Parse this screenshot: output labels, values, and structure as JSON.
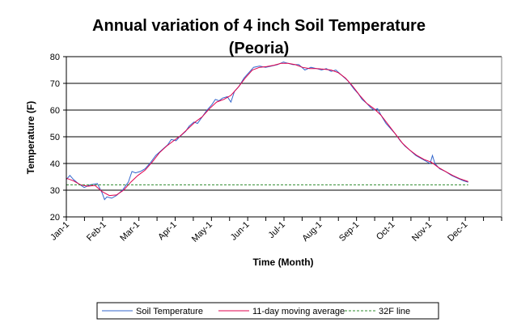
{
  "chart_data": {
    "type": "line",
    "title_line1": "Annual variation of 4 inch Soil Temperature",
    "title_line2": "(Peoria)",
    "xlabel": "Time (Month)",
    "ylabel": "Temperature (F)",
    "ylim": [
      20,
      80
    ],
    "yticks": [
      "20",
      "30",
      "40",
      "50",
      "60",
      "70",
      "80"
    ],
    "xlim": [
      0,
      365
    ],
    "categories": [
      "Jan-1",
      "Feb-1",
      "Mar-1",
      "Apr-1",
      "May-1",
      "Jun-1",
      "Jul-1",
      "Aug-1",
      "Sep-1",
      "Oct-1",
      "Nov-1",
      "Dec-1"
    ],
    "category_days": [
      0,
      31,
      59,
      90,
      120,
      151,
      181,
      212,
      243,
      273,
      304,
      334
    ],
    "grid": true,
    "legend_position": "bottom",
    "series": [
      {
        "name": "Soil Temperature",
        "color": "#3366cc",
        "style": "solid",
        "points": [
          [
            0,
            34
          ],
          [
            3,
            35.5
          ],
          [
            6,
            34
          ],
          [
            10,
            32.5
          ],
          [
            15,
            31
          ],
          [
            20,
            32
          ],
          [
            26,
            32.5
          ],
          [
            30,
            29
          ],
          [
            32,
            26.5
          ],
          [
            34,
            27.5
          ],
          [
            38,
            27
          ],
          [
            42,
            28
          ],
          [
            47,
            30
          ],
          [
            52,
            33
          ],
          [
            55,
            37
          ],
          [
            58,
            36.5
          ],
          [
            62,
            37
          ],
          [
            66,
            38
          ],
          [
            70,
            40
          ],
          [
            75,
            43
          ],
          [
            80,
            45
          ],
          [
            85,
            47
          ],
          [
            88,
            49
          ],
          [
            92,
            48.5
          ],
          [
            95,
            50
          ],
          [
            100,
            52
          ],
          [
            103,
            54
          ],
          [
            107,
            55.5
          ],
          [
            110,
            55
          ],
          [
            114,
            57.5
          ],
          [
            118,
            60
          ],
          [
            122,
            62
          ],
          [
            125,
            64
          ],
          [
            128,
            63.5
          ],
          [
            131,
            64.5
          ],
          [
            135,
            65
          ],
          [
            138,
            63
          ],
          [
            141,
            67
          ],
          [
            145,
            69
          ],
          [
            149,
            72
          ],
          [
            153,
            74
          ],
          [
            157,
            76
          ],
          [
            162,
            76.5
          ],
          [
            167,
            76
          ],
          [
            172,
            76.5
          ],
          [
            177,
            77
          ],
          [
            182,
            78
          ],
          [
            186,
            77.5
          ],
          [
            190,
            77
          ],
          [
            195,
            77
          ],
          [
            200,
            75
          ],
          [
            205,
            76
          ],
          [
            210,
            75.5
          ],
          [
            214,
            75
          ],
          [
            218,
            75.5
          ],
          [
            222,
            74.5
          ],
          [
            226,
            75
          ],
          [
            231,
            73
          ],
          [
            236,
            71
          ],
          [
            241,
            68
          ],
          [
            245,
            66
          ],
          [
            248,
            64
          ],
          [
            252,
            62.5
          ],
          [
            255,
            61
          ],
          [
            258,
            60
          ],
          [
            261,
            60.5
          ],
          [
            264,
            58
          ],
          [
            268,
            55
          ],
          [
            272,
            53
          ],
          [
            276,
            51
          ],
          [
            280,
            48.5
          ],
          [
            284,
            46.5
          ],
          [
            288,
            45
          ],
          [
            293,
            43
          ],
          [
            297,
            42
          ],
          [
            301,
            41
          ],
          [
            305,
            40
          ],
          [
            307,
            43
          ],
          [
            309,
            40
          ],
          [
            313,
            38
          ],
          [
            318,
            37
          ],
          [
            323,
            35.5
          ],
          [
            328,
            34.5
          ],
          [
            333,
            33.5
          ],
          [
            337,
            33
          ]
        ]
      },
      {
        "name": "11-day moving average",
        "color": "#e0004c",
        "style": "solid",
        "points": [
          [
            0,
            34.5
          ],
          [
            6,
            33.5
          ],
          [
            12,
            32
          ],
          [
            18,
            31.5
          ],
          [
            24,
            31.8
          ],
          [
            30,
            29.5
          ],
          [
            36,
            28
          ],
          [
            42,
            28.2
          ],
          [
            48,
            30
          ],
          [
            54,
            33
          ],
          [
            60,
            35.5
          ],
          [
            66,
            37.5
          ],
          [
            72,
            40.5
          ],
          [
            78,
            44
          ],
          [
            84,
            46.5
          ],
          [
            90,
            48.5
          ],
          [
            96,
            50.5
          ],
          [
            102,
            53
          ],
          [
            108,
            55.5
          ],
          [
            114,
            57.5
          ],
          [
            120,
            60.5
          ],
          [
            126,
            63
          ],
          [
            132,
            64
          ],
          [
            138,
            65.5
          ],
          [
            144,
            68.5
          ],
          [
            150,
            72
          ],
          [
            156,
            75
          ],
          [
            162,
            76
          ],
          [
            168,
            76.3
          ],
          [
            174,
            76.8
          ],
          [
            180,
            77.5
          ],
          [
            186,
            77.5
          ],
          [
            192,
            77
          ],
          [
            198,
            76
          ],
          [
            204,
            75.5
          ],
          [
            210,
            75.5
          ],
          [
            216,
            75.3
          ],
          [
            222,
            75
          ],
          [
            228,
            74
          ],
          [
            234,
            72
          ],
          [
            240,
            69
          ],
          [
            246,
            65.5
          ],
          [
            252,
            62.5
          ],
          [
            258,
            60.5
          ],
          [
            264,
            58
          ],
          [
            270,
            54.5
          ],
          [
            276,
            51
          ],
          [
            282,
            47.5
          ],
          [
            288,
            45
          ],
          [
            294,
            43
          ],
          [
            300,
            41.5
          ],
          [
            306,
            40.5
          ],
          [
            312,
            38.5
          ],
          [
            318,
            37
          ],
          [
            324,
            35.5
          ],
          [
            330,
            34.3
          ],
          [
            337,
            33.2
          ]
        ]
      },
      {
        "name": "32F line",
        "color": "#2e8b2e",
        "style": "dashed",
        "points": [
          [
            0,
            32
          ],
          [
            337,
            32
          ]
        ]
      }
    ]
  }
}
